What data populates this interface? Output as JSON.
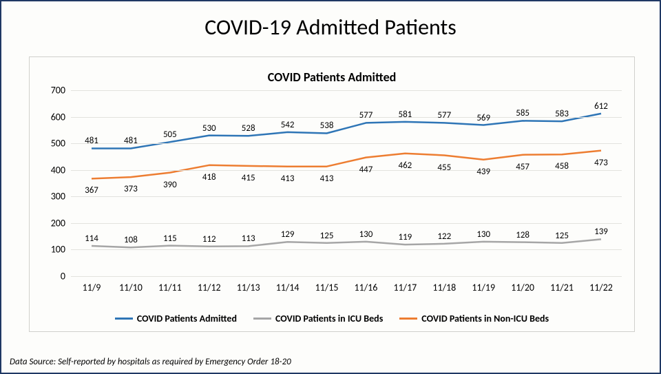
{
  "title": "COVID-19 Admitted Patients",
  "subtitle": "COVID Patients Admitted",
  "footnote": "Data Source: Self-reported by hospitals as required by Emergency Order 18-20",
  "chart": {
    "type": "line",
    "ylim": [
      0,
      700
    ],
    "ytick_step": 100,
    "categories": [
      "11/9",
      "11/10",
      "11/11",
      "11/12",
      "11/13",
      "11/14",
      "11/15",
      "11/16",
      "11/17",
      "11/18",
      "11/19",
      "11/20",
      "11/21",
      "11/22"
    ],
    "grid_color": "#e2e2de",
    "background_color": "#fdfdfb",
    "line_width": 2.5,
    "label_fontsize": 13,
    "series": [
      {
        "name": "COVID Patients Admitted",
        "color": "#2e75b6",
        "values": [
          481,
          481,
          505,
          530,
          528,
          542,
          538,
          577,
          581,
          577,
          569,
          585,
          583,
          612
        ],
        "label_offset_y": -18
      },
      {
        "name": "COVID Patients in ICU Beds",
        "color": "#a6a6a6",
        "values": [
          114,
          108,
          115,
          112,
          113,
          129,
          125,
          130,
          119,
          122,
          130,
          128,
          125,
          139
        ],
        "label_offset_y": -18
      },
      {
        "name": "COVID Patients in Non-ICU Beds",
        "color": "#ed7d31",
        "values": [
          367,
          373,
          390,
          418,
          415,
          413,
          413,
          447,
          462,
          455,
          439,
          457,
          458,
          473
        ],
        "label_offset_y": 10
      }
    ],
    "legend_order": [
      0,
      1,
      2
    ]
  }
}
